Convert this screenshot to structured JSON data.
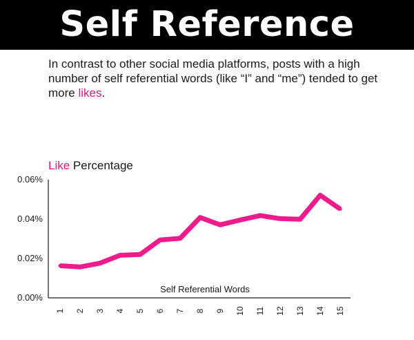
{
  "header": {
    "title": "Self Reference"
  },
  "intro": {
    "text_before": "In contrast to other social media platforms, posts with a high number of self referential words (like “I” and “me”) tended to get more ",
    "highlight": "likes",
    "text_after": "."
  },
  "colors": {
    "accent": "#e0147f",
    "banner": "#000000",
    "line": "#ef1b8c"
  },
  "chart_data": {
    "type": "line",
    "ylabel_highlight": "Like",
    "ylabel_rest": " Percentage",
    "xlabel": "Self Referential Words",
    "x": [
      1,
      2,
      3,
      4,
      5,
      6,
      7,
      8,
      9,
      10,
      11,
      12,
      13,
      14,
      15
    ],
    "x_tick_labels": [
      "1",
      "2",
      "3",
      "4",
      "5",
      "6",
      "7",
      "8",
      "9",
      "10",
      "11",
      "12",
      "13",
      "14",
      "15"
    ],
    "series": [
      {
        "values": [
          0.0163,
          0.0157,
          0.0176,
          0.0216,
          0.022,
          0.0294,
          0.0302,
          0.0408,
          0.0371,
          0.0395,
          0.0418,
          0.0402,
          0.0399,
          0.0521,
          0.0451
        ]
      }
    ],
    "ylim": [
      0,
      0.06
    ],
    "y_ticks": [
      0,
      0.02,
      0.04,
      0.06
    ],
    "y_tick_labels": [
      "0.00%",
      "0.02%",
      "0.04%",
      "0.06%"
    ],
    "grid": false
  }
}
